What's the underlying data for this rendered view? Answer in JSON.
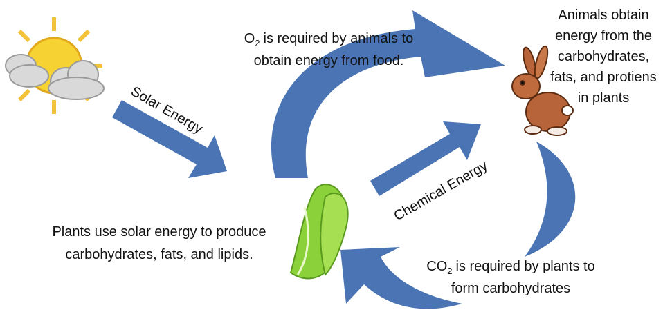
{
  "labels": {
    "solar_energy": "Solar Energy",
    "chemical_energy": "Chemical Energy"
  },
  "notes": {
    "oxygen": {
      "symbol": "O",
      "subscript": "2",
      "line1": "is required by animals to",
      "line2": "obtain energy from food."
    },
    "animals": {
      "lines": [
        "Animals obtain",
        "energy from the",
        "carbohydrates,",
        "fats, and protiens",
        "in plants"
      ]
    },
    "plants": {
      "lines": [
        "Plants use solar energy to produce",
        "carbohydrates, fats, and lipids."
      ]
    },
    "carbon_dioxide": {
      "symbol": "CO",
      "subscript": "2",
      "line1": "is required by plants to",
      "line2": "form carbohydrates"
    }
  }
}
